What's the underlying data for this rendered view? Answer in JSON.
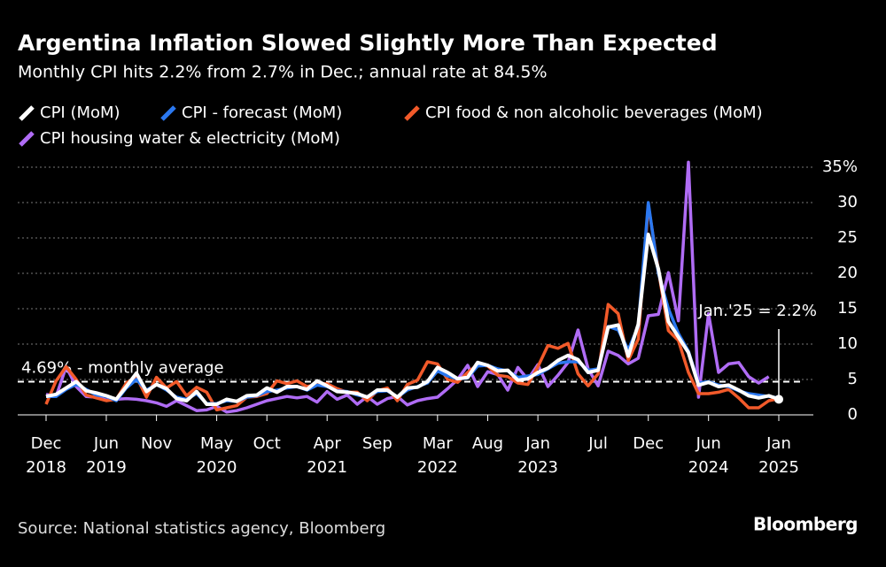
{
  "chart_data": {
    "type": "line",
    "title": "Argentina Inflation Slowed Slightly More Than Expected",
    "subtitle": "Monthly CPI hits 2.2% from 2.7% in Dec.; annual rate at 84.5%",
    "source": "Source: National statistics agency, Bloomberg",
    "brand": "Bloomberg",
    "x": [
      "2018-12",
      "2019-01",
      "2019-02",
      "2019-03",
      "2019-04",
      "2019-05",
      "2019-06",
      "2019-07",
      "2019-08",
      "2019-09",
      "2019-10",
      "2019-11",
      "2019-12",
      "2020-01",
      "2020-02",
      "2020-03",
      "2020-04",
      "2020-05",
      "2020-06",
      "2020-07",
      "2020-08",
      "2020-09",
      "2020-10",
      "2020-11",
      "2020-12",
      "2021-01",
      "2021-02",
      "2021-03",
      "2021-04",
      "2021-05",
      "2021-06",
      "2021-07",
      "2021-08",
      "2021-09",
      "2021-10",
      "2021-11",
      "2021-12",
      "2022-01",
      "2022-02",
      "2022-03",
      "2022-04",
      "2022-05",
      "2022-06",
      "2022-07",
      "2022-08",
      "2022-09",
      "2022-10",
      "2022-11",
      "2022-12",
      "2023-01",
      "2023-02",
      "2023-03",
      "2023-04",
      "2023-05",
      "2023-06",
      "2023-07",
      "2023-08",
      "2023-09",
      "2023-10",
      "2023-11",
      "2023-12",
      "2024-01",
      "2024-02",
      "2024-03",
      "2024-04",
      "2024-05",
      "2024-06",
      "2024-07",
      "2024-08",
      "2024-09",
      "2024-10",
      "2024-11",
      "2024-12",
      "2025-01"
    ],
    "xticks": [
      {
        "value": "2018-12",
        "label": [
          "Dec",
          "2018"
        ]
      },
      {
        "value": "2019-06",
        "label": [
          "Jun",
          "2019"
        ]
      },
      {
        "value": "2019-11",
        "label": [
          "Nov"
        ]
      },
      {
        "value": "2020-05",
        "label": [
          "May",
          "2020"
        ]
      },
      {
        "value": "2020-10",
        "label": [
          "Oct"
        ]
      },
      {
        "value": "2021-04",
        "label": [
          "Apr",
          "2021"
        ]
      },
      {
        "value": "2021-09",
        "label": [
          "Sep"
        ]
      },
      {
        "value": "2022-03",
        "label": [
          "Mar",
          "2022"
        ]
      },
      {
        "value": "2022-08",
        "label": [
          "Aug"
        ]
      },
      {
        "value": "2023-01",
        "label": [
          "Jan",
          "2023"
        ]
      },
      {
        "value": "2023-07",
        "label": [
          "Jul"
        ]
      },
      {
        "value": "2023-12",
        "label": [
          "Dec"
        ]
      },
      {
        "value": "2024-06",
        "label": [
          "Jun",
          "2024"
        ]
      },
      {
        "value": "2025-01",
        "label": [
          "Jan",
          "2025"
        ]
      }
    ],
    "ylim": [
      0,
      35
    ],
    "yticks": [
      0,
      5,
      10,
      15,
      20,
      25,
      30,
      {
        "value": 35,
        "label": "35%"
      }
    ],
    "grid": true,
    "series": [
      {
        "name": "CPI (MoM)",
        "color": "#ffffff",
        "values": [
          2.6,
          2.9,
          3.8,
          4.7,
          3.4,
          3.1,
          2.7,
          2.2,
          4.0,
          5.9,
          3.3,
          4.3,
          3.7,
          2.3,
          2.0,
          3.3,
          1.5,
          1.5,
          2.2,
          1.9,
          2.7,
          2.8,
          3.8,
          3.2,
          4.0,
          4.0,
          3.6,
          4.8,
          4.1,
          3.3,
          3.2,
          3.0,
          2.5,
          3.5,
          3.5,
          2.5,
          3.8,
          3.9,
          4.7,
          6.7,
          6.0,
          5.1,
          5.3,
          7.4,
          7.0,
          6.2,
          6.3,
          4.9,
          5.1,
          6.0,
          6.6,
          7.7,
          8.4,
          7.8,
          6.0,
          6.3,
          12.4,
          12.7,
          8.3,
          12.8,
          25.5,
          20.6,
          13.2,
          11.0,
          8.8,
          4.2,
          4.6,
          4.0,
          4.2,
          3.5,
          2.7,
          2.4,
          2.7,
          2.2
        ]
      },
      {
        "name": "CPI - forecast (MoM)",
        "color": "#2b78f0",
        "values": [
          2.6,
          2.6,
          3.6,
          4.3,
          3.6,
          2.8,
          2.6,
          2.0,
          3.8,
          5.0,
          3.5,
          4.3,
          3.5,
          2.5,
          2.2,
          3.0,
          1.6,
          1.6,
          2.0,
          1.9,
          2.5,
          2.7,
          3.3,
          3.5,
          3.8,
          4.0,
          3.5,
          4.2,
          4.0,
          3.4,
          3.3,
          2.8,
          2.5,
          3.3,
          3.4,
          2.5,
          3.5,
          4.0,
          4.5,
          6.2,
          5.5,
          5.1,
          5.2,
          6.9,
          7.0,
          6.5,
          6.2,
          5.3,
          5.5,
          5.7,
          6.5,
          7.3,
          7.5,
          7.5,
          6.3,
          6.5,
          12.5,
          12.0,
          9.2,
          12.5,
          30.0,
          20.0,
          15.0,
          11.5,
          9.0,
          4.5,
          4.7,
          4.2,
          4.0,
          3.4,
          3.0,
          2.8,
          2.6,
          2.4
        ]
      },
      {
        "name": "CPI food & non alcoholic beverages (MoM)",
        "color": "#f25a2a",
        "values": [
          1.5,
          4.8,
          6.8,
          5.0,
          2.8,
          2.4,
          2.0,
          2.2,
          4.5,
          5.4,
          2.5,
          5.3,
          3.8,
          4.7,
          2.7,
          3.9,
          3.2,
          0.7,
          1.0,
          1.3,
          2.5,
          2.6,
          3.0,
          4.8,
          4.4,
          4.8,
          4.0,
          4.3,
          4.4,
          3.7,
          3.2,
          3.2,
          2.0,
          3.4,
          3.8,
          2.0,
          4.3,
          4.9,
          7.5,
          7.2,
          5.0,
          4.6,
          6.0,
          7.1,
          6.9,
          5.6,
          5.4,
          4.5,
          4.3,
          6.8,
          9.8,
          9.4,
          10.1,
          5.8,
          4.1,
          5.8,
          15.6,
          14.3,
          7.7,
          10.7,
          29.7,
          20.4,
          11.9,
          10.5,
          6.0,
          3.0,
          3.0,
          3.2,
          3.6,
          2.4,
          1.0,
          1.0,
          2.0,
          2.3
        ]
      },
      {
        "name": "CPI housing water & electricity (MoM)",
        "color": "#b06cf5",
        "values": [
          2.9,
          2.6,
          6.8,
          4.0,
          2.6,
          2.5,
          2.1,
          2.2,
          2.3,
          2.2,
          2.0,
          1.7,
          1.2,
          2.0,
          1.3,
          0.6,
          0.7,
          1.2,
          0.4,
          0.6,
          1.0,
          1.5,
          2.0,
          2.3,
          2.6,
          2.4,
          2.6,
          1.8,
          3.3,
          2.2,
          2.8,
          1.5,
          2.6,
          1.5,
          2.3,
          2.6,
          1.4,
          2.0,
          2.3,
          2.5,
          3.7,
          5.0,
          7.0,
          4.0,
          6.1,
          5.7,
          3.5,
          6.7,
          5.0,
          7.1,
          4.0,
          5.6,
          7.4,
          12.0,
          6.5,
          4.1,
          9.0,
          8.4,
          7.2,
          8.0,
          14.0,
          14.2,
          20.1,
          13.3,
          35.7,
          2.5,
          14.3,
          6.0,
          7.2,
          7.4,
          5.4,
          4.5,
          5.4,
          null
        ]
      }
    ],
    "reference_line": {
      "value": 4.69,
      "label": "4.69% - monthly average"
    },
    "annotation": {
      "label": "Jan.'25 = 2.2%"
    }
  }
}
